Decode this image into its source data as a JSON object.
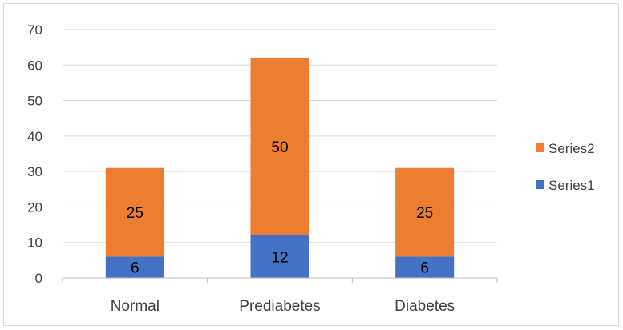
{
  "chart_data": {
    "type": "bar",
    "stacked": true,
    "categories": [
      "Normal",
      "Prediabetes",
      "Diabetes"
    ],
    "series": [
      {
        "name": "Series1",
        "values": [
          6,
          12,
          6
        ],
        "color": "#4472C4"
      },
      {
        "name": "Series2",
        "values": [
          25,
          50,
          25
        ],
        "color": "#ED7D31"
      }
    ],
    "y_ticks": [
      "0",
      "10",
      "20",
      "30",
      "40",
      "50",
      "60",
      "70"
    ],
    "ylim": [
      0,
      70
    ],
    "grid": true,
    "legend_position": "right",
    "legend_order": [
      "Series2",
      "Series1"
    ]
  }
}
